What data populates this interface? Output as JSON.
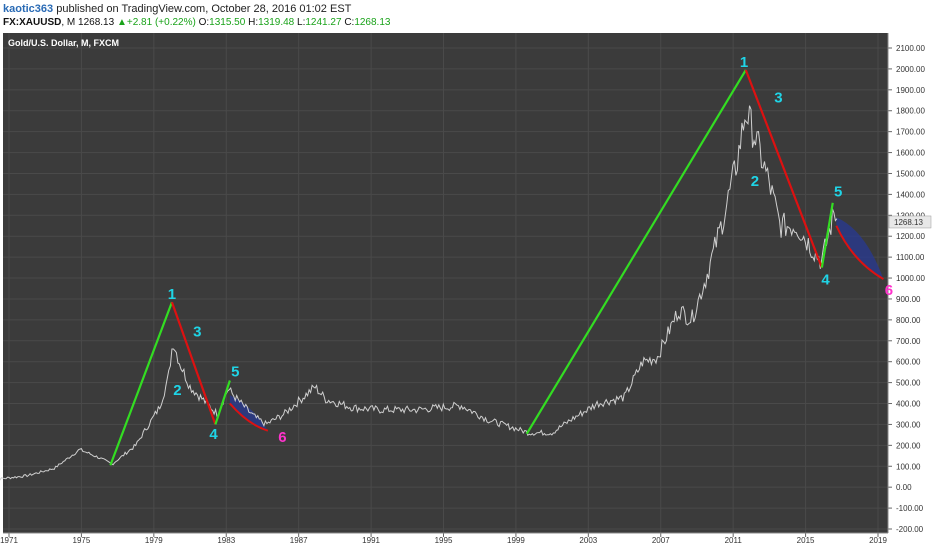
{
  "header": {
    "author": "kaotic363",
    "published_text": "published on TradingView.com, October 28, 2016 01:02 EST",
    "symbol": "FX:XAUUSD",
    "interval": "M",
    "last": "1268.13",
    "change": "+2.81 (+0.22%)",
    "open_label": "O:",
    "open": "1315.50",
    "high_label": "H:",
    "high": "1319.48",
    "low_label": "L:",
    "low": "1241.27",
    "close_label": "C:",
    "close": "1268.13"
  },
  "chart_data": {
    "type": "line",
    "title": "Gold/U.S. Dollar, M, FXCM",
    "x_ticks": [
      "1971",
      "1975",
      "1979",
      "1983",
      "1987",
      "1991",
      "1995",
      "1999",
      "2003",
      "2007",
      "2011",
      "2015",
      "2019"
    ],
    "y_ticks": [
      "2100.00",
      "2000.00",
      "1900.00",
      "1800.00",
      "1700.00",
      "1600.00",
      "1500.00",
      "1400.00",
      "1300.00",
      "1200.00",
      "1100.00",
      "1000.00",
      "900.00",
      "800.00",
      "700.00",
      "600.00",
      "500.00",
      "400.00",
      "300.00",
      "200.00",
      "100.00",
      "0.00",
      "-100.00",
      "-200.00"
    ],
    "ylim": [
      -200,
      2100
    ],
    "xlim": [
      1970.0,
      2019.9
    ],
    "last_price_label": "1268.13",
    "price_series": {
      "x": [
        1970.0,
        1972.0,
        1973.5,
        1974.9,
        1976.0,
        1976.7,
        1978.0,
        1979.3,
        1979.8,
        1980.05,
        1980.4,
        1981.0,
        1981.7,
        1982.5,
        1983.1,
        1983.6,
        1984.5,
        1985.2,
        1986.2,
        1987.9,
        1988.5,
        1990.0,
        1991.5,
        1993.5,
        1996.0,
        1997.5,
        1999.0,
        1999.7,
        2001.0,
        2002.0,
        2003.5,
        2005.0,
        2006.0,
        2006.8,
        2008.0,
        2008.7,
        2009.5,
        2010.5,
        2011.2,
        2011.7,
        2012.3,
        2013.0,
        2013.6,
        2014.5,
        2015.3,
        2015.9,
        2016.6,
        2016.8
      ],
      "y": [
        35,
        55,
        90,
        180,
        140,
        110,
        200,
        380,
        520,
        700,
        600,
        480,
        420,
        350,
        470,
        420,
        340,
        300,
        350,
        480,
        420,
        380,
        370,
        370,
        390,
        320,
        280,
        260,
        260,
        320,
        400,
        430,
        600,
        620,
        850,
        800,
        1000,
        1300,
        1550,
        1800,
        1650,
        1450,
        1250,
        1250,
        1150,
        1080,
        1320,
        1268
      ]
    },
    "wave_lines": [
      {
        "color": "green",
        "points": [
          [
            1976.6,
            105
          ],
          [
            1980.0,
            885
          ]
        ]
      },
      {
        "color": "red",
        "points": [
          [
            1980.0,
            885
          ],
          [
            1982.4,
            300
          ]
        ]
      },
      {
        "color": "green",
        "points": [
          [
            1982.4,
            300
          ],
          [
            1983.2,
            510
          ]
        ]
      },
      {
        "color": "green",
        "points": [
          [
            1999.6,
            255
          ],
          [
            2011.7,
            1995
          ]
        ]
      },
      {
        "color": "red",
        "points": [
          [
            2011.7,
            1995
          ],
          [
            2015.9,
            1050
          ]
        ]
      },
      {
        "color": "green",
        "points": [
          [
            2015.9,
            1050
          ],
          [
            2016.5,
            1360
          ]
        ]
      }
    ],
    "projection_curves": [
      {
        "color": "red",
        "points": [
          [
            1983.2,
            400
          ],
          [
            1984.2,
            300
          ],
          [
            1985.3,
            270
          ]
        ]
      },
      {
        "color": "red",
        "points": [
          [
            2016.7,
            1250
          ],
          [
            2017.6,
            1080
          ],
          [
            2019.3,
            995
          ]
        ]
      }
    ],
    "wave_labels": [
      {
        "text": "1",
        "x": 1980.0,
        "y": 900,
        "color": "#1fd4e6"
      },
      {
        "text": "2",
        "x": 1980.3,
        "y": 440,
        "color": "#1fd4e6"
      },
      {
        "text": "3",
        "x": 1981.4,
        "y": 720,
        "color": "#1fd4e6"
      },
      {
        "text": "4",
        "x": 1982.3,
        "y": 230,
        "color": "#1fd4e6"
      },
      {
        "text": "5",
        "x": 1983.5,
        "y": 530,
        "color": "#1fd4e6"
      },
      {
        "text": "6",
        "x": 1986.1,
        "y": 215,
        "color": "#ff33cc"
      },
      {
        "text": "1",
        "x": 2011.6,
        "y": 2010,
        "color": "#1fd4e6"
      },
      {
        "text": "2",
        "x": 2012.2,
        "y": 1440,
        "color": "#1fd4e6"
      },
      {
        "text": "3",
        "x": 2013.5,
        "y": 1840,
        "color": "#1fd4e6"
      },
      {
        "text": "4",
        "x": 2016.1,
        "y": 970,
        "color": "#1fd4e6"
      },
      {
        "text": "5",
        "x": 2016.8,
        "y": 1390,
        "color": "#1fd4e6"
      },
      {
        "text": "6",
        "x": 2019.6,
        "y": 920,
        "color": "#ff33cc"
      }
    ],
    "colors": {
      "background": "#3b3b3b",
      "grid": "#4a4a4a",
      "price": "#cfcfcf",
      "green": "#33dd22",
      "red": "#dd1111",
      "fill": "#2a3a8a",
      "price_tag": "#e8e8e8"
    }
  }
}
